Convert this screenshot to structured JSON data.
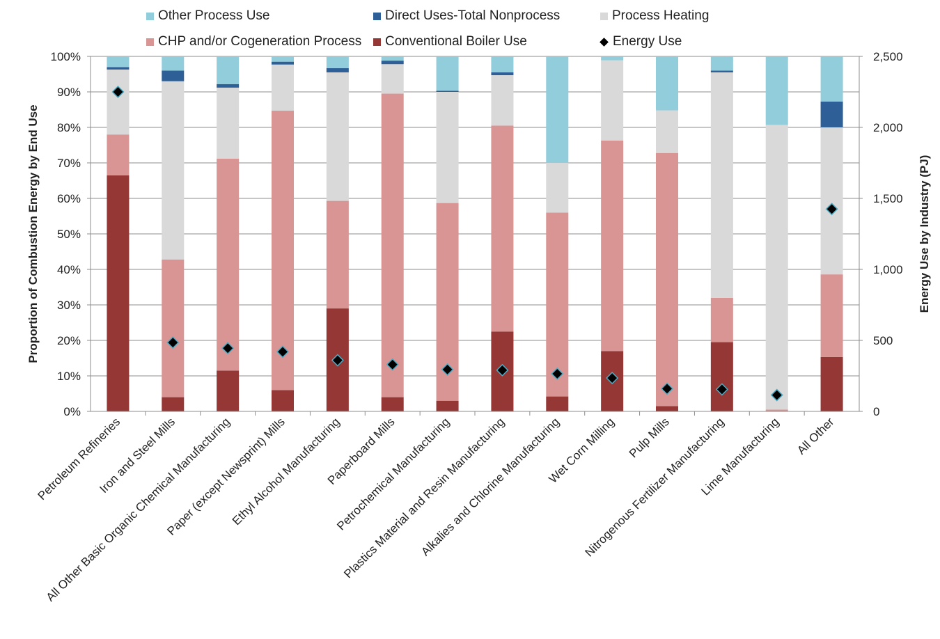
{
  "chart_data": {
    "type": "bar",
    "stacked": true,
    "categories": [
      "Petroleum Refineries",
      "Iron and Steel Mills",
      "All Other Basic Organic Chemical Manufacturing",
      "Paper (except Newsprint) Mills",
      "Ethyl Alcohol Manufacturing",
      "Paperboard Mills",
      "Petrochemical Manufacturing",
      "Plastics Material and Resin Manufacturing",
      "Alkalies and Chlorine Manufacturing",
      "Wet Corn Milling",
      "Pulp Mills",
      "Nitrogenous Fertilizer Manufacturing",
      "Lime Manufacturing",
      "All Other"
    ],
    "series": [
      {
        "name": "Conventional Boiler Use",
        "color": "#953735",
        "values": [
          66.5,
          4,
          11.5,
          6,
          29,
          4,
          3,
          22.5,
          4.2,
          17,
          1.5,
          19.5,
          0,
          15.3
        ]
      },
      {
        "name": "CHP and/or Cogeneration Process",
        "color": "#d99594",
        "values": [
          11.5,
          38.8,
          59.7,
          78.7,
          30.3,
          85.5,
          55.7,
          58,
          51.8,
          59.3,
          71.3,
          12.5,
          0.5,
          23.3
        ]
      },
      {
        "name": "Process Heating",
        "color": "#d9d9d9",
        "values": [
          18.3,
          50.2,
          20,
          13,
          36.2,
          8.3,
          31.3,
          14.2,
          14,
          22.6,
          12,
          63.5,
          80.2,
          41.4
        ]
      },
      {
        "name": "Direct Uses-Total Nonprocess",
        "color": "#2e5f96",
        "values": [
          0.7,
          3,
          1,
          0.8,
          1.2,
          1,
          0.3,
          0.8,
          0,
          0,
          0,
          0.5,
          0,
          7.3
        ]
      },
      {
        "name": "Other Process Use",
        "color": "#92cddc",
        "values": [
          3,
          4,
          7.8,
          1.5,
          3.3,
          1.2,
          9.7,
          4.5,
          30,
          1.1,
          15.2,
          4,
          19.3,
          12.7
        ]
      }
    ],
    "energy_use": {
      "name": "Energy Use",
      "values": [
        2250,
        485,
        445,
        420,
        360,
        330,
        295,
        290,
        265,
        235,
        160,
        155,
        115,
        1425
      ]
    },
    "ylabel": "Proportion of Combustion Energy by End Use",
    "y2label": "Energy Use by Industry (PJ)",
    "ylim": [
      0,
      100
    ],
    "y2lim": [
      0,
      2500
    ],
    "yticks": [
      "0%",
      "10%",
      "20%",
      "30%",
      "40%",
      "50%",
      "60%",
      "70%",
      "80%",
      "90%",
      "100%"
    ],
    "y2ticks": [
      "0",
      "500",
      "1,000",
      "1,500",
      "2,000",
      "2,500"
    ],
    "grid": true,
    "legend_position": "top",
    "legend": [
      {
        "label": "Other Process Use",
        "color": "#92cddc",
        "marker": "square"
      },
      {
        "label": "Direct Uses-Total Nonprocess",
        "color": "#2e5f96",
        "marker": "square"
      },
      {
        "label": "Process Heating",
        "color": "#d9d9d9",
        "marker": "square"
      },
      {
        "label": "CHP and/or Cogeneration Process",
        "color": "#d99594",
        "marker": "square"
      },
      {
        "label": "Conventional Boiler Use",
        "color": "#953735",
        "marker": "square"
      },
      {
        "label": "Energy Use",
        "color": "#000000",
        "marker": "diamond"
      }
    ]
  }
}
